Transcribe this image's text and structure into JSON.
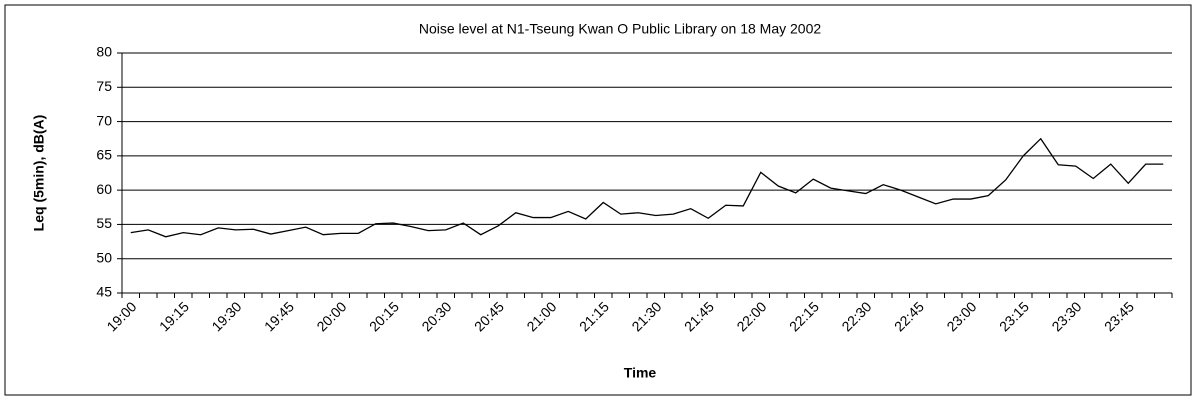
{
  "chart_data": {
    "type": "line",
    "title": "Noise level at  N1-Tseung Kwan O Public Library on 18 May 2002",
    "y_label": "Leq (5min), dB(A)",
    "x_label": "Time",
    "categories": [
      "19:00",
      null,
      null,
      "19:15",
      null,
      null,
      "19:30",
      null,
      null,
      "19:45",
      null,
      null,
      "20:00",
      null,
      null,
      "20:15",
      null,
      null,
      "20:30",
      null,
      null,
      "20:45",
      null,
      null,
      "21:00",
      null,
      null,
      "21:15",
      null,
      null,
      "21:30",
      null,
      null,
      "21:45",
      null,
      null,
      "22:00",
      null,
      null,
      "22:15",
      null,
      null,
      "22:30",
      null,
      null,
      "22:45",
      null,
      null,
      "23:00",
      null,
      null,
      "23:15",
      null,
      null,
      "23:30",
      null,
      null,
      "23:45",
      null,
      null
    ],
    "series": [
      {
        "name": "Leq",
        "color": "#000000",
        "values": [
          53.8,
          54.2,
          53.2,
          53.8,
          53.5,
          54.5,
          54.2,
          54.3,
          53.6,
          54.1,
          54.6,
          53.5,
          53.7,
          53.7,
          55.1,
          55.2,
          54.7,
          54.1,
          54.2,
          55.2,
          53.5,
          54.8,
          56.7,
          56.0,
          56.0,
          56.9,
          55.8,
          58.2,
          56.5,
          56.7,
          56.3,
          56.5,
          57.3,
          55.9,
          57.8,
          57.7,
          62.6,
          60.6,
          59.6,
          61.6,
          60.3,
          59.9,
          59.5,
          60.8,
          60.0,
          59.0,
          58.0,
          58.7,
          58.7,
          59.2,
          61.5,
          65.0,
          67.5,
          63.7,
          63.5,
          61.7,
          63.8,
          61.0,
          63.8,
          63.8
        ]
      }
    ],
    "ylim": [
      45,
      80
    ],
    "yticks": [
      45,
      50,
      55,
      60,
      65,
      70,
      75,
      80
    ],
    "grid": true
  }
}
